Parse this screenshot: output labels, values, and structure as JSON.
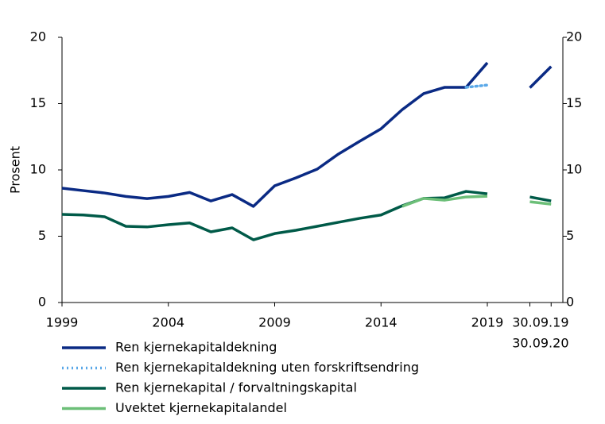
{
  "chart_data": {
    "type": "line",
    "y_label": "Prosent",
    "categories": [
      "1999",
      null,
      null,
      null,
      null,
      "2004",
      null,
      null,
      null,
      null,
      "2009",
      null,
      null,
      null,
      null,
      "2014",
      null,
      null,
      null,
      null,
      "2019",
      null,
      "30.09.19",
      "30.09.20"
    ],
    "ylim": [
      0,
      20
    ],
    "yticks": [
      0,
      5,
      10,
      15,
      20
    ],
    "mirror_y_axis": true,
    "grid": false,
    "legend": "bottom",
    "series": [
      {
        "name": "Ren kjernekapitaldekning",
        "color": "#0a2a84",
        "style": "solid",
        "values": [
          8.62,
          8.44,
          8.26,
          8.0,
          7.84,
          8.0,
          8.3,
          7.66,
          8.14,
          7.25,
          8.8,
          9.4,
          10.06,
          11.2,
          12.16,
          13.1,
          14.55,
          15.75,
          16.23,
          16.23,
          18.08,
          null,
          16.2,
          17.8
        ]
      },
      {
        "name": "Ren kjernekapitaldekning uten forskriftsendring",
        "color": "#5aa8e8",
        "style": "dotted",
        "values": [
          null,
          null,
          null,
          null,
          null,
          null,
          null,
          null,
          null,
          null,
          null,
          null,
          null,
          null,
          null,
          null,
          null,
          null,
          null,
          16.23,
          16.4,
          null,
          null,
          null
        ]
      },
      {
        "name": "Ren kjernekapital / forvaltningskapital",
        "color": "#005a48",
        "style": "solid",
        "values": [
          6.65,
          6.6,
          6.47,
          5.75,
          5.7,
          5.87,
          6.0,
          5.33,
          5.63,
          4.73,
          5.2,
          5.45,
          5.75,
          6.05,
          6.35,
          6.6,
          7.3,
          7.85,
          7.9,
          8.38,
          8.2,
          null,
          7.96,
          7.66
        ]
      },
      {
        "name": "Uvektet kjernekapitalandel",
        "color": "#6cbf78",
        "style": "solid",
        "values": [
          null,
          null,
          null,
          null,
          null,
          null,
          null,
          null,
          null,
          null,
          null,
          null,
          null,
          null,
          null,
          null,
          7.25,
          7.85,
          7.72,
          7.96,
          8.02,
          null,
          7.6,
          7.42
        ]
      }
    ]
  }
}
